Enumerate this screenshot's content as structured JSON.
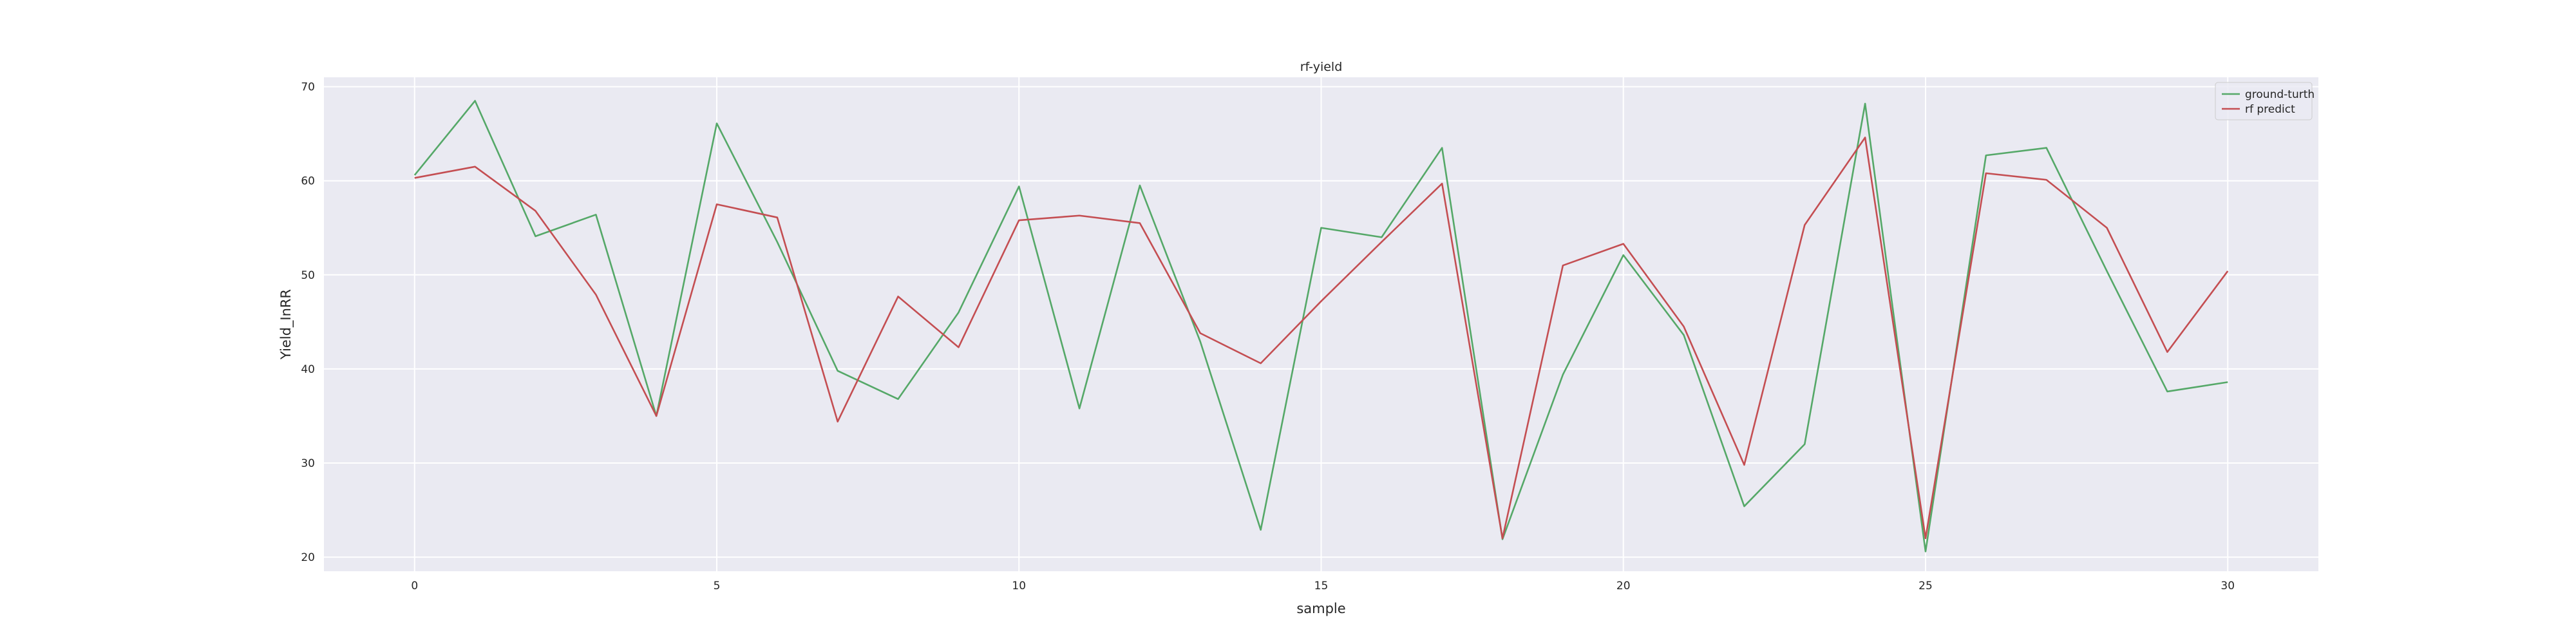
{
  "chart_data": {
    "type": "line",
    "title": "rf-yield",
    "xlabel": "sample",
    "ylabel": "Yield_InRR",
    "xlim": [
      -1.5,
      31.5
    ],
    "ylim": [
      18.5,
      71
    ],
    "xticks": [
      0,
      5,
      10,
      15,
      20,
      25,
      30
    ],
    "yticks": [
      20,
      30,
      40,
      50,
      60,
      70
    ],
    "grid": true,
    "legend": "top-right",
    "x": [
      0,
      1,
      2,
      3,
      4,
      5,
      6,
      7,
      8,
      9,
      10,
      11,
      12,
      13,
      14,
      15,
      16,
      17,
      18,
      19,
      20,
      21,
      22,
      23,
      24,
      25,
      26,
      27,
      28,
      29,
      30
    ],
    "series": [
      {
        "name": "ground-turth",
        "color": "#55a868",
        "values": [
          60.6,
          68.5,
          54.1,
          56.4,
          35.0,
          66.1,
          53.5,
          39.8,
          36.8,
          46.0,
          59.4,
          35.8,
          59.5,
          42.9,
          22.9,
          55.0,
          54.0,
          63.5,
          21.9,
          39.4,
          52.1,
          43.6,
          25.4,
          32.0,
          68.2,
          20.6,
          62.7,
          63.5,
          50.4,
          37.6,
          38.6
        ]
      },
      {
        "name": "rf predict",
        "color": "#c44e52",
        "values": [
          60.3,
          61.5,
          56.8,
          47.9,
          35.0,
          57.5,
          56.1,
          34.4,
          47.7,
          42.3,
          55.8,
          56.3,
          55.5,
          43.8,
          40.6,
          47.2,
          53.5,
          59.7,
          22.0,
          51.0,
          53.3,
          44.5,
          29.8,
          55.3,
          64.6,
          22.0,
          60.8,
          60.1,
          55.0,
          41.8,
          50.4
        ]
      }
    ]
  }
}
